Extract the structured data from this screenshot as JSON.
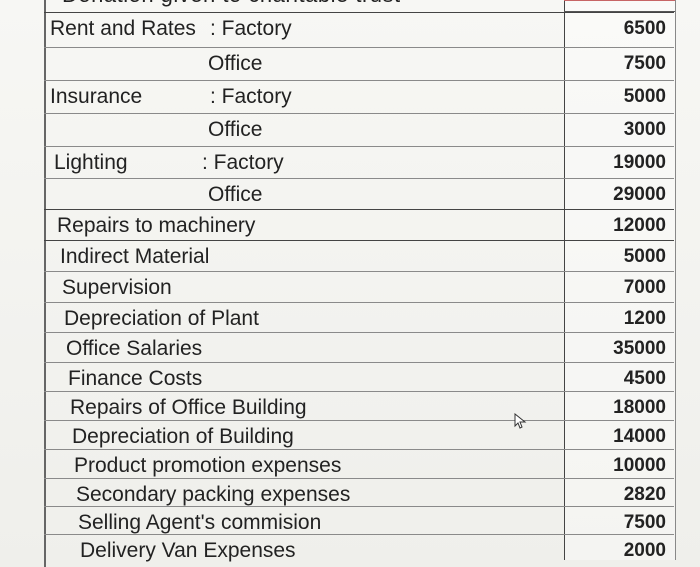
{
  "header": {
    "cut_text": "Donation given to charitable trust"
  },
  "rows": [
    {
      "label": "Rent and Rates",
      "sub": ": Factory",
      "amount": "6500"
    },
    {
      "label": "",
      "sub": "Office",
      "amount": "7500"
    },
    {
      "label": "Insurance",
      "sub": ": Factory",
      "amount": "5000"
    },
    {
      "label": "",
      "sub": "Office",
      "amount": "3000"
    },
    {
      "label": "Lighting",
      "sub": ": Factory",
      "amount": "19000"
    },
    {
      "label": "",
      "sub": "Office",
      "amount": "29000"
    },
    {
      "label": "Repairs to machinery",
      "sub": "",
      "amount": "12000"
    },
    {
      "label": "Indirect Material",
      "sub": "",
      "amount": "5000"
    },
    {
      "label": "Supervision",
      "sub": "",
      "amount": "7000"
    },
    {
      "label": "Depreciation of Plant",
      "sub": "",
      "amount": "1200"
    },
    {
      "label": "Office Salaries",
      "sub": "",
      "amount": "35000"
    },
    {
      "label": "Finance Costs",
      "sub": "",
      "amount": "4500"
    },
    {
      "label": "Repairs of Office Building",
      "sub": "",
      "amount": "18000"
    },
    {
      "label": "Depreciation of Building",
      "sub": "",
      "amount": "14000"
    },
    {
      "label": "Product promotion expenses",
      "sub": "",
      "amount": "10000"
    },
    {
      "label": "Secondary packing expenses",
      "sub": "",
      "amount": "2820"
    },
    {
      "label": "Selling Agent's commision",
      "sub": "",
      "amount": "7500"
    },
    {
      "label": "Delivery Van Expenses",
      "sub": "",
      "amount": "2000"
    }
  ],
  "icons": {
    "cursor": "mouse-pointer-icon"
  }
}
